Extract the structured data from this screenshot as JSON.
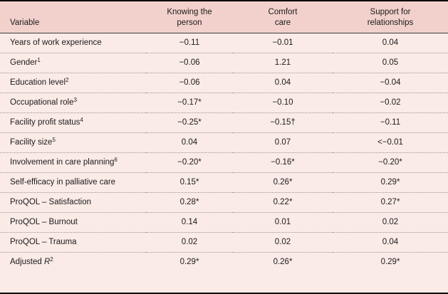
{
  "table": {
    "columns": [
      {
        "label": "Variable"
      },
      {
        "label": "Knowing the\nperson"
      },
      {
        "label": "Comfort\ncare"
      },
      {
        "label": "Support for\nrelationships"
      }
    ],
    "rows": [
      {
        "label": "Years of work experience",
        "sup": "",
        "values": [
          "−0.11",
          "−0.01",
          "0.04"
        ]
      },
      {
        "label": "Gender",
        "sup": "1",
        "values": [
          "−0.06",
          "1.21",
          "0.05"
        ]
      },
      {
        "label": "Education level",
        "sup": "2",
        "values": [
          "−0.06",
          "0.04",
          "−0.04"
        ]
      },
      {
        "label": "Occupational role",
        "sup": "3",
        "values": [
          "−0.17*",
          "−0.10",
          "−0.02"
        ]
      },
      {
        "label": "Facility profit status",
        "sup": "4",
        "values": [
          "−0.25*",
          "−0.15†",
          "−0.11"
        ]
      },
      {
        "label": "Facility size",
        "sup": "5",
        "values": [
          "0.04",
          "0.07",
          "<−0.01"
        ]
      },
      {
        "label": "Involvement in care planning",
        "sup": "6",
        "values": [
          "−0.20*",
          "−0.16*",
          "−0.20*"
        ]
      },
      {
        "label": "Self-efficacy in palliative care",
        "sup": "",
        "values": [
          "0.15*",
          "0.26*",
          "0.29*"
        ]
      },
      {
        "label": "ProQOL – Satisfaction",
        "sup": "",
        "values": [
          "0.28*",
          "0.22*",
          "0.27*"
        ]
      },
      {
        "label": "ProQOL – Burnout",
        "sup": "",
        "values": [
          "0.14",
          "0.01",
          "0.02"
        ]
      },
      {
        "label": "ProQOL – Trauma",
        "sup": "",
        "values": [
          "0.02",
          "0.02",
          "0.04"
        ]
      },
      {
        "label": "Adjusted ",
        "italic": "R",
        "sup": "2",
        "values": [
          "0.29*",
          "0.26*",
          "0.29*"
        ]
      }
    ],
    "colors": {
      "header_bg": "#f2d1cc",
      "body_bg": "#fbebe7",
      "text": "#1b1b1b",
      "row_divider": "#9c938f",
      "frame_border": "#000000",
      "header_rule": "#3c3c3c"
    }
  }
}
